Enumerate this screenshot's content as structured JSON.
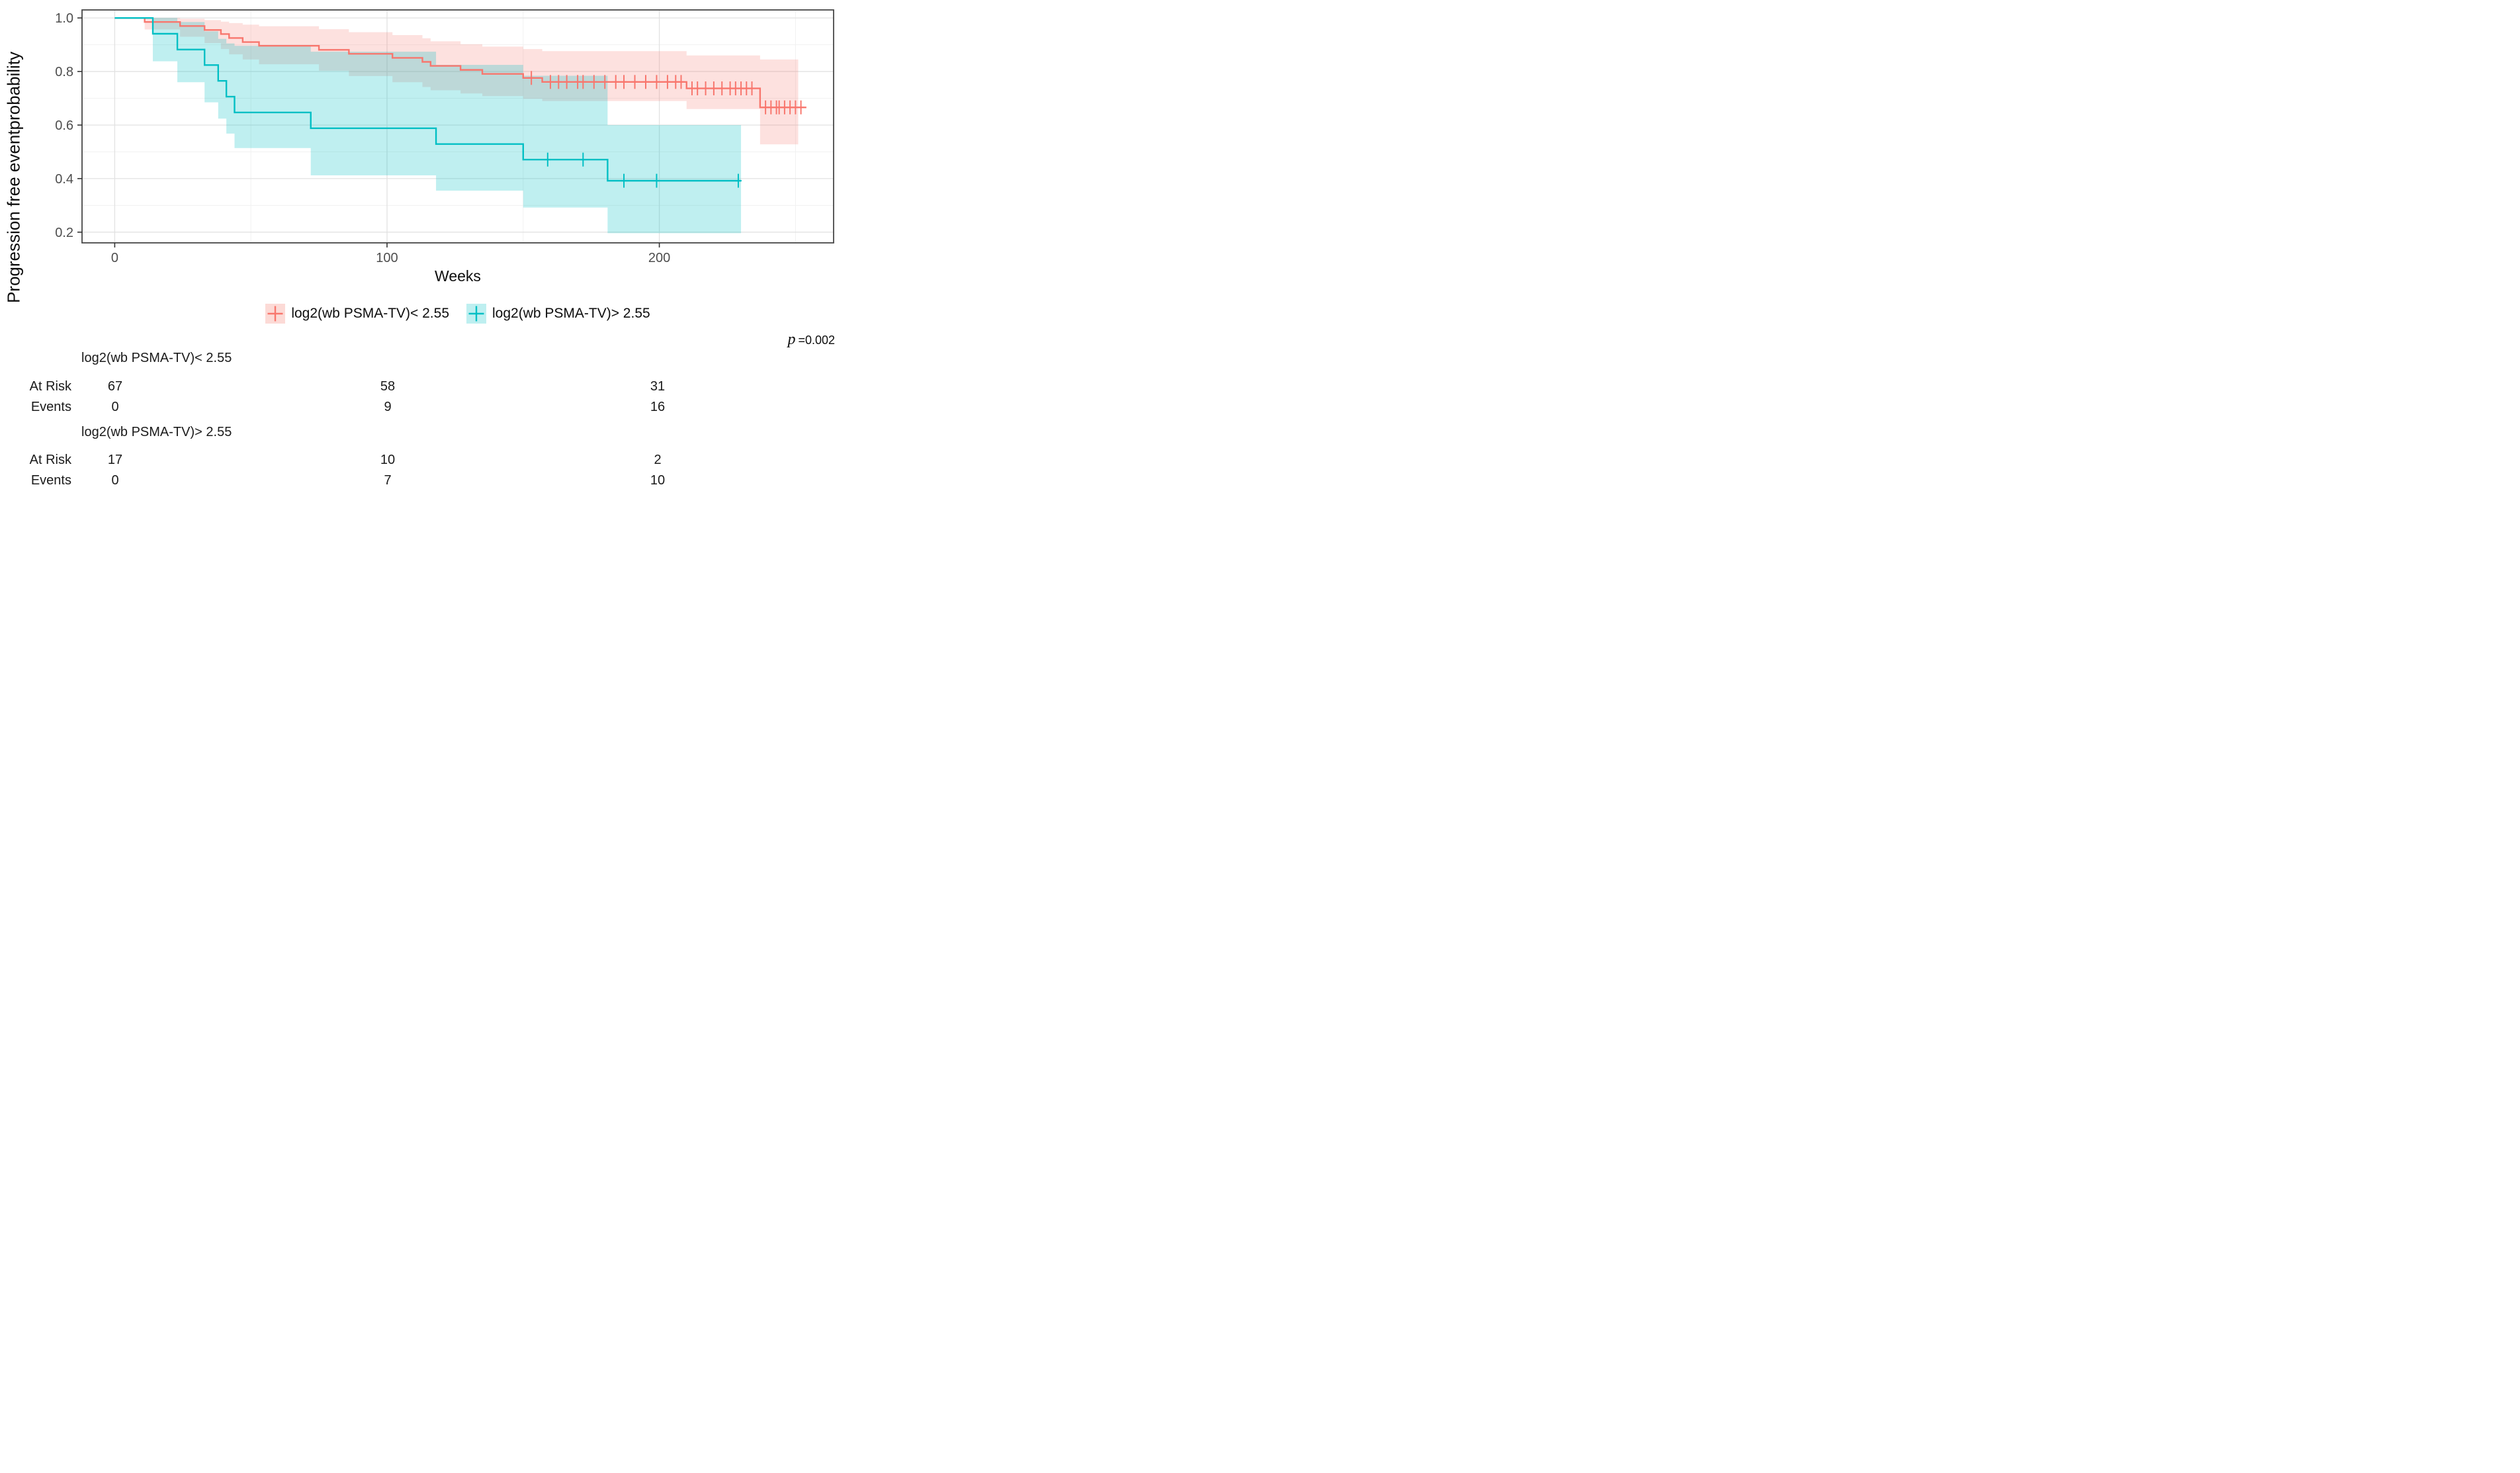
{
  "chart_data": {
    "type": "line",
    "subtype": "kaplan-meier-step",
    "title": "",
    "xlabel": "Weeks",
    "ylabel": "Progression free eventprobability",
    "xlim": [
      -12,
      264
    ],
    "ylim": [
      0.16,
      1.03
    ],
    "grid": true,
    "legend_position": "bottom",
    "x_ticks": [
      0,
      100,
      200
    ],
    "x_tick_labels": [
      "0",
      "100",
      "200"
    ],
    "x_minor_gridlines": [
      50,
      150,
      250
    ],
    "y_ticks": [
      1.0,
      0.8,
      0.6,
      0.4,
      0.2
    ],
    "y_tick_labels": [
      "1.0",
      "0.8",
      "0.6",
      "0.4",
      "0.2"
    ],
    "y_minor_gridlines": [
      0.9,
      0.7,
      0.5,
      0.3
    ],
    "p_label": "p",
    "p_value_text": "=0.002",
    "series": [
      {
        "name": "log2(wb PSMA-TV)< 2.55",
        "color": "#F8766D",
        "fill": "rgba(248,118,109,0.22)",
        "times": [
          0,
          11,
          24,
          33,
          39,
          42,
          47,
          53,
          75,
          86,
          102,
          113,
          116,
          127,
          135,
          150,
          157,
          210,
          237
        ],
        "survival": [
          1,
          0.985,
          0.97,
          0.955,
          0.94,
          0.925,
          0.91,
          0.896,
          0.881,
          0.866,
          0.851,
          0.836,
          0.821,
          0.806,
          0.791,
          0.776,
          0.761,
          0.737,
          0.666
        ],
        "ci_upper": [
          1,
          1.0,
          0.997,
          0.992,
          0.986,
          0.981,
          0.975,
          0.969,
          0.958,
          0.947,
          0.936,
          0.924,
          0.913,
          0.902,
          0.893,
          0.884,
          0.876,
          0.86,
          0.845
        ],
        "ci_lower": [
          1,
          0.957,
          0.93,
          0.906,
          0.884,
          0.864,
          0.845,
          0.827,
          0.803,
          0.783,
          0.76,
          0.742,
          0.73,
          0.718,
          0.708,
          0.698,
          0.69,
          0.66,
          0.528
        ],
        "end_time": 254,
        "ci_end_time": 251,
        "censor_times": [
          153,
          160,
          163,
          166,
          170,
          172,
          176,
          180,
          184,
          187,
          191,
          195,
          199,
          203,
          206,
          208,
          212,
          214,
          217,
          220,
          223,
          226,
          228,
          230,
          232,
          234,
          239,
          241,
          243,
          244,
          246,
          248,
          250,
          252
        ]
      },
      {
        "name": "log2(wb PSMA-TV)> 2.55",
        "color": "#00BFC4",
        "fill": "rgba(0,191,196,0.25)",
        "times": [
          0,
          14,
          23,
          33,
          38,
          41,
          44,
          72,
          118,
          150,
          181
        ],
        "survival": [
          1,
          0.941,
          0.882,
          0.824,
          0.765,
          0.706,
          0.647,
          0.588,
          0.529,
          0.471,
          0.392
        ],
        "ci_upper": [
          1,
          1.0,
          0.985,
          0.95,
          0.922,
          0.905,
          0.896,
          0.874,
          0.825,
          0.784,
          0.6
        ],
        "ci_lower": [
          1,
          0.838,
          0.76,
          0.685,
          0.624,
          0.568,
          0.514,
          0.412,
          0.355,
          0.292,
          0.196
        ],
        "end_time": 230,
        "ci_end_time": 230,
        "censor_times": [
          159,
          172,
          187,
          199,
          229
        ]
      }
    ]
  },
  "legend": {
    "items": [
      {
        "label": "log2(wb PSMA-TV)< 2.55",
        "color": "#F8766D",
        "fill": "#FCDAD6"
      },
      {
        "label": "log2(wb PSMA-TV)> 2.55",
        "color": "#00BFC4",
        "fill": "#BEEFF0"
      }
    ]
  },
  "risk_table": {
    "groups": [
      {
        "header": "log2(wb PSMA-TV)< 2.55",
        "rows": [
          {
            "label": "At Risk",
            "values": [
              "67",
              "58",
              "31"
            ]
          },
          {
            "label": "Events",
            "values": [
              "0",
              "9",
              "16"
            ]
          }
        ]
      },
      {
        "header": "log2(wb PSMA-TV)> 2.55",
        "rows": [
          {
            "label": "At Risk",
            "values": [
              "17",
              "10",
              "2"
            ]
          },
          {
            "label": "Events",
            "values": [
              "0",
              "7",
              "10"
            ]
          }
        ]
      }
    ]
  }
}
